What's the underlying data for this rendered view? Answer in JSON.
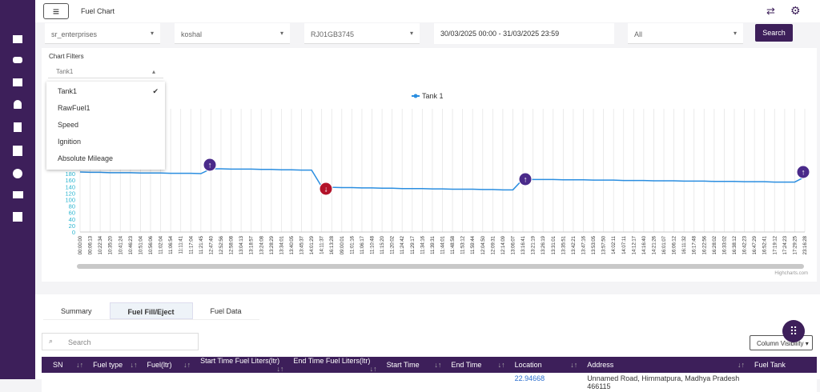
{
  "header": {
    "title": "Fuel Chart"
  },
  "filters": {
    "company": "sr_enterprises",
    "user": "koshal",
    "vehicle": "RJ01GB3745",
    "date_range": "30/03/2025 00:00 - 31/03/2025 23:59",
    "status": "All",
    "search_button": "Search"
  },
  "chart_filters": {
    "label": "Chart Filters",
    "selected": "Tank1",
    "options": [
      "Tank1",
      "RawFuel1",
      "Speed",
      "Ignition",
      "Absolute Mileage"
    ]
  },
  "chart_data": {
    "type": "line",
    "credit": "Highcharts.com",
    "categories": [
      "00:00:00",
      "00:06:13",
      "10:22:34",
      "10:35:20",
      "10:41:24",
      "10:46:23",
      "10:51:04",
      "10:56:06",
      "11:02:04",
      "11:06:54",
      "11:11:41",
      "11:17:04",
      "11:21:45",
      "12:47:40",
      "12:52:56",
      "12:58:08",
      "13:04:13",
      "13:18:57",
      "13:24:08",
      "13:28:29",
      "13:34:01",
      "13:40:05",
      "13:45:37",
      "14:01:29",
      "14:11:37",
      "16:13:28",
      "09:00:01",
      "11:01:16",
      "11:06:17",
      "11:10:48",
      "11:15:20",
      "11:20:02",
      "11:24:42",
      "11:29:17",
      "11:34:16",
      "11:39:31",
      "11:44:01",
      "11:48:58",
      "11:53:12",
      "11:59:44",
      "12:04:50",
      "12:09:31",
      "12:14:09",
      "13:06:07",
      "13:16:41",
      "13:21:19",
      "13:26:19",
      "13:31:01",
      "13:35:51",
      "13:42:21",
      "13:47:16",
      "13:53:05",
      "13:57:50",
      "14:02:11",
      "14:07:11",
      "14:12:17",
      "14:16:40",
      "14:21:26",
      "16:01:07",
      "16:06:12",
      "16:11:32",
      "16:17:48",
      "16:22:56",
      "16:28:02",
      "16:33:02",
      "16:38:12",
      "16:42:23",
      "16:47:29",
      "16:52:41",
      "17:19:12",
      "17:24:23",
      "17:29:25",
      "23:16:28"
    ],
    "series": [
      {
        "name": "Tank 1",
        "color": "#2b8ee0",
        "values": [
          185,
          184,
          184,
          183,
          183,
          183,
          182,
          182,
          182,
          181,
          181,
          181,
          180,
          195,
          195,
          194,
          194,
          194,
          193,
          193,
          192,
          192,
          191,
          191,
          140,
          138,
          137,
          137,
          136,
          136,
          135,
          135,
          134,
          134,
          134,
          133,
          133,
          132,
          132,
          132,
          131,
          131,
          130,
          130,
          163,
          162,
          162,
          162,
          161,
          161,
          161,
          160,
          160,
          160,
          159,
          159,
          159,
          158,
          158,
          158,
          157,
          157,
          157,
          156,
          156,
          156,
          155,
          155,
          155,
          154,
          154,
          154,
          170
        ]
      }
    ],
    "ylim": [
      0,
      380
    ],
    "yticks": [
      0,
      20,
      40,
      60,
      80,
      100,
      120,
      140,
      160,
      180
    ],
    "grid": true
  },
  "tabs": [
    "Summary",
    "Fuel Fill/Eject",
    "Fuel Data"
  ],
  "table": {
    "search_placeholder": "Search",
    "column_button": "Column Visibility",
    "columns": [
      "SN",
      "Fuel type",
      "Fuel(ltr)",
      "Start Time Fuel Liters(ltr)",
      "End Time Fuel Liters(ltr)",
      "Start Time",
      "End Time",
      "Location",
      "Address",
      "Fuel Tank"
    ],
    "rows": [
      [
        "",
        "",
        "",
        "",
        "",
        "",
        "",
        "22.94668",
        "Unnamed Road, Himmatpura, Madhya Pradesh 466115",
        ""
      ]
    ]
  }
}
